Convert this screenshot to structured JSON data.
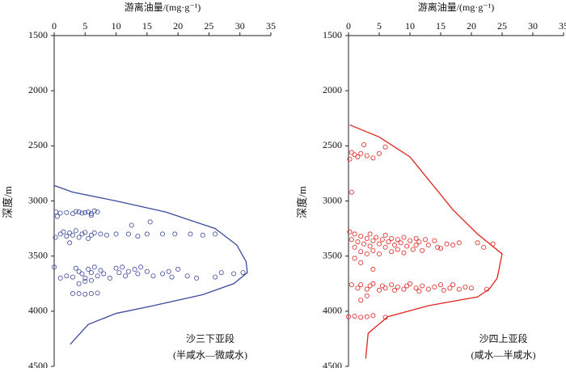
{
  "chart_data": [
    {
      "type": "scatter",
      "xlabel": "游离油量/(mg·g⁻¹)",
      "ylabel": "深度/m",
      "xlim": [
        0,
        35
      ],
      "xticks": [
        0,
        5,
        10,
        15,
        20,
        25,
        30,
        35
      ],
      "ylim": [
        1500,
        4500
      ],
      "yticks": [
        1500,
        2000,
        2500,
        3000,
        3500,
        4000,
        4500
      ],
      "y_inverted": true,
      "color": "#3b4a9e",
      "annotations": [
        "沙三下亚段",
        "(半咸水—微咸水)"
      ],
      "points": {
        "x": [
          0.3,
          1,
          2,
          3,
          3.5,
          4,
          4.5,
          5,
          5.5,
          6,
          6.5,
          7,
          0.5,
          6,
          15.5,
          12.5,
          0.2,
          1,
          1.5,
          2,
          2.5,
          3,
          3.5,
          4,
          4.5,
          5,
          5.5,
          6,
          6.5,
          7.5,
          8.5,
          10,
          12,
          13.5,
          15,
          17.5,
          19.5,
          22,
          24,
          26,
          2.5,
          0,
          1,
          2,
          3,
          3.5,
          4,
          4.5,
          5,
          5.5,
          6,
          6.5,
          7,
          7.5,
          8,
          9,
          10,
          10.5,
          11,
          11.5,
          12,
          13,
          13.5,
          14,
          15,
          16,
          17.5,
          18.5,
          19,
          20,
          21.5,
          23,
          26,
          27,
          29,
          30.5,
          4,
          5,
          6,
          3,
          4,
          5,
          6,
          7
        ],
        "y": [
          3100,
          3110,
          3105,
          3115,
          3095,
          3100,
          3110,
          3105,
          3100,
          3115,
          3090,
          3100,
          3140,
          3130,
          3190,
          3220,
          3330,
          3300,
          3280,
          3320,
          3290,
          3310,
          3270,
          3330,
          3300,
          3285,
          3340,
          3310,
          3290,
          3300,
          3310,
          3300,
          3300,
          3320,
          3300,
          3300,
          3300,
          3300,
          3310,
          3300,
          3380,
          3600,
          3700,
          3680,
          3690,
          3610,
          3640,
          3660,
          3700,
          3620,
          3650,
          3600,
          3680,
          3630,
          3660,
          3700,
          3610,
          3650,
          3600,
          3680,
          3640,
          3620,
          3660,
          3600,
          3640,
          3680,
          3660,
          3640,
          3690,
          3620,
          3680,
          3700,
          3690,
          3650,
          3660,
          3650,
          3750,
          3730,
          3720,
          3840,
          3840,
          3845,
          3840,
          3835
        ]
      },
      "curve": {
        "x": [
          0,
          3,
          10,
          18,
          26,
          29.5,
          31,
          31.2,
          29,
          24,
          16,
          10,
          5.5,
          2.6
        ],
        "y": [
          2860,
          2920,
          3000,
          3100,
          3250,
          3400,
          3550,
          3650,
          3750,
          3850,
          3950,
          4020,
          4120,
          4300
        ]
      }
    },
    {
      "type": "scatter",
      "xlabel": "游离油量/(mg·g⁻¹)",
      "ylabel": "深度/m",
      "xlim": [
        0,
        35
      ],
      "xticks": [
        0,
        5,
        10,
        15,
        20,
        25,
        30,
        35
      ],
      "ylim": [
        1500,
        4500
      ],
      "yticks": [
        1500,
        2000,
        2500,
        3000,
        3500,
        4000,
        4500
      ],
      "y_inverted": true,
      "color": "#e0251f",
      "annotations": [
        "沙四上亚段",
        "(咸水—半咸水)"
      ],
      "points": {
        "x": [
          0.5,
          1,
          1.5,
          2,
          3,
          4,
          2.5,
          6,
          0.2,
          5,
          0.5,
          0.2,
          0.5,
          1,
          1,
          1.5,
          2,
          2,
          2.5,
          3,
          3,
          3.5,
          3.5,
          4,
          4,
          4.5,
          5,
          5,
          5.5,
          6,
          6,
          6.5,
          7,
          7,
          7.5,
          8,
          8,
          8.5,
          9,
          9,
          9.5,
          10,
          10.5,
          11,
          11,
          11.5,
          12,
          12.5,
          13,
          14,
          14.5,
          15,
          16,
          17,
          18,
          21,
          22,
          23.5,
          2,
          4,
          1,
          0.5,
          1.5,
          2,
          3,
          3.5,
          4,
          5,
          5.5,
          6,
          7,
          7.5,
          8,
          9,
          9.5,
          10,
          11,
          11.5,
          12,
          13,
          14,
          15,
          15.5,
          16.5,
          17,
          18,
          19,
          20,
          22.5,
          3,
          2,
          0,
          1,
          2,
          3,
          4,
          6
        ],
        "y": [
          2560,
          2580,
          2600,
          2570,
          2590,
          2610,
          2490,
          2510,
          2620,
          2570,
          2920,
          3280,
          3350,
          3300,
          3420,
          3370,
          3320,
          3460,
          3390,
          3340,
          3480,
          3300,
          3410,
          3360,
          3450,
          3330,
          3390,
          3480,
          3350,
          3420,
          3310,
          3370,
          3460,
          3340,
          3400,
          3350,
          3440,
          3380,
          3330,
          3470,
          3410,
          3360,
          3440,
          3340,
          3400,
          3370,
          3450,
          3350,
          3400,
          3360,
          3420,
          3430,
          3390,
          3400,
          3380,
          3380,
          3420,
          3390,
          3560,
          3620,
          3520,
          3760,
          3790,
          3760,
          3800,
          3770,
          3750,
          3810,
          3770,
          3790,
          3760,
          3810,
          3780,
          3800,
          3770,
          3750,
          3790,
          3820,
          3770,
          3800,
          3780,
          3760,
          3810,
          3790,
          3760,
          3800,
          3780,
          3790,
          3800,
          3860,
          3900,
          4050,
          4045,
          4055,
          4050,
          4040,
          4055
        ]
      },
      "curve": {
        "x": [
          0.2,
          5,
          10,
          17,
          21,
          25,
          24.2,
          22.9,
          21,
          13,
          6.4,
          3.2,
          2.8
        ],
        "y": [
          2310,
          2420,
          2600,
          3080,
          3300,
          3480,
          3700,
          3800,
          3870,
          3950,
          4050,
          4200,
          4430
        ]
      }
    }
  ]
}
